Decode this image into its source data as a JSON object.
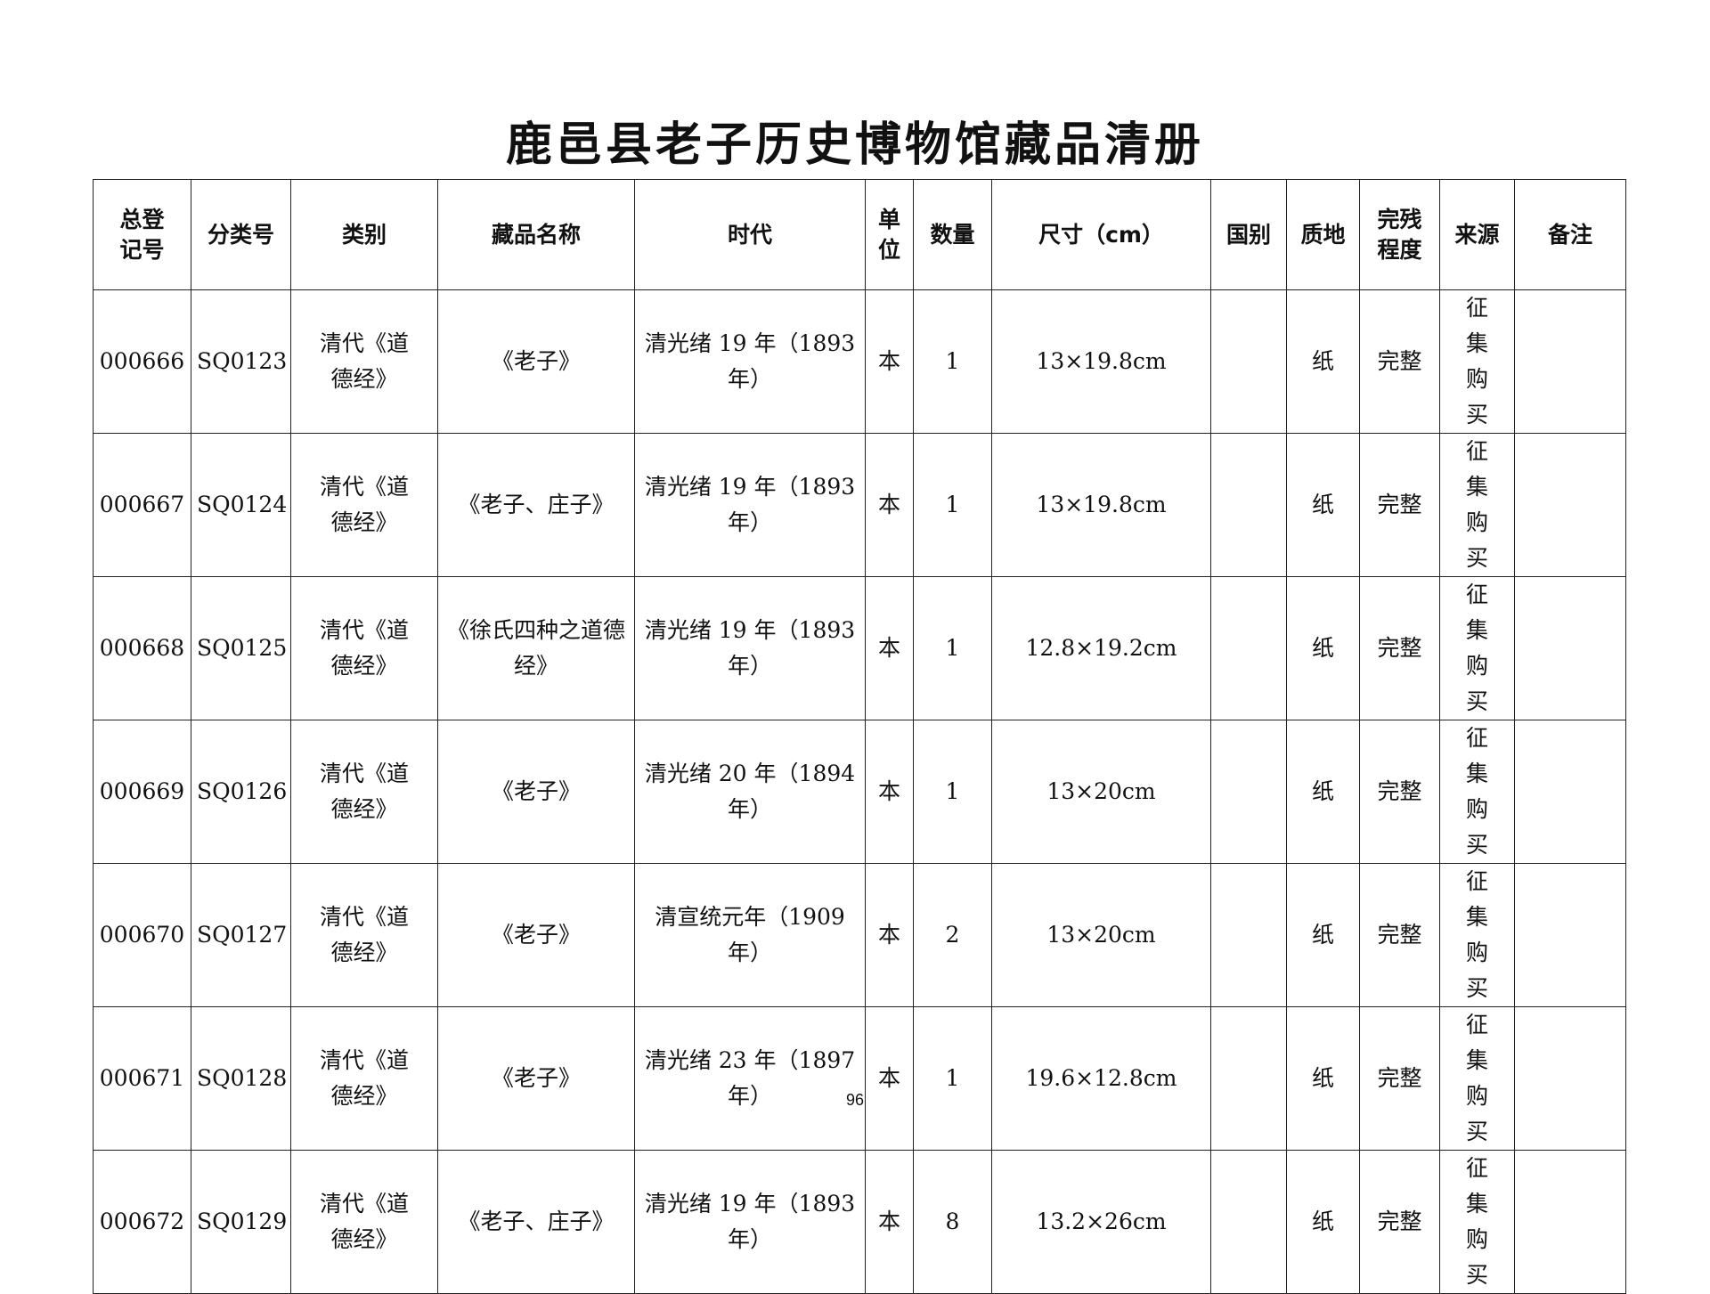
{
  "title": "鹿邑县老子历史博物馆藏品清册",
  "columns": [
    "总登记号",
    "分类号",
    "类别",
    "藏品名称",
    "时代",
    "单位",
    "数量",
    "尺寸（cm）",
    "国别",
    "质地",
    "完残程度",
    "来源",
    "备注"
  ],
  "rows": [
    {
      "reg": "000666",
      "cls": "SQ0123",
      "cat": "清代《道德经》",
      "name": "《老子》",
      "era": "清光绪 19 年（1893 年）",
      "unit": "本",
      "qty": "1",
      "size": "13×19.8cm",
      "country": "",
      "material": "纸",
      "cond": "完整",
      "src": "征集购买",
      "note": ""
    },
    {
      "reg": "000667",
      "cls": "SQ0124",
      "cat": "清代《道德经》",
      "name": "《老子、庄子》",
      "era": "清光绪 19 年（1893 年）",
      "unit": "本",
      "qty": "1",
      "size": "13×19.8cm",
      "country": "",
      "material": "纸",
      "cond": "完整",
      "src": "征集购买",
      "note": ""
    },
    {
      "reg": "000668",
      "cls": "SQ0125",
      "cat": "清代《道德经》",
      "name": "《徐氏四种之道德经》",
      "era": "清光绪 19 年（1893 年）",
      "unit": "本",
      "qty": "1",
      "size": "12.8×19.2cm",
      "country": "",
      "material": "纸",
      "cond": "完整",
      "src": "征集购买",
      "note": ""
    },
    {
      "reg": "000669",
      "cls": "SQ0126",
      "cat": "清代《道德经》",
      "name": "《老子》",
      "era": "清光绪 20 年（1894 年）",
      "unit": "本",
      "qty": "1",
      "size": "13×20cm",
      "country": "",
      "material": "纸",
      "cond": "完整",
      "src": "征集购买",
      "note": ""
    },
    {
      "reg": "000670",
      "cls": "SQ0127",
      "cat": "清代《道德经》",
      "name": "《老子》",
      "era": "清宣统元年（1909 年）",
      "unit": "本",
      "qty": "2",
      "size": "13×20cm",
      "country": "",
      "material": "纸",
      "cond": "完整",
      "src": "征集购买",
      "note": ""
    },
    {
      "reg": "000671",
      "cls": "SQ0128",
      "cat": "清代《道德经》",
      "name": "《老子》",
      "era": "清光绪 23 年（1897 年）",
      "unit": "本",
      "qty": "1",
      "size": "19.6×12.8cm",
      "country": "",
      "material": "纸",
      "cond": "完整",
      "src": "征集购买",
      "note": ""
    },
    {
      "reg": "000672",
      "cls": "SQ0129",
      "cat": "清代《道德经》",
      "name": "《老子、庄子》",
      "era": "清光绪 19 年（1893 年）",
      "unit": "本",
      "qty": "8",
      "size": "13.2×26cm",
      "country": "",
      "material": "纸",
      "cond": "完整",
      "src": "征集购买",
      "note": ""
    }
  ],
  "page_number": "96"
}
